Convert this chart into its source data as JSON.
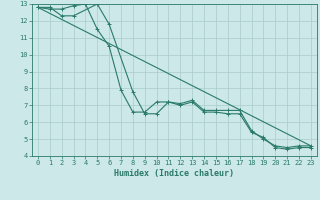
{
  "xlabel": "Humidex (Indice chaleur)",
  "bg_color": "#cce8e8",
  "grid_color": "#aacccc",
  "line_color": "#2a7a6a",
  "xlim": [
    -0.5,
    23.5
  ],
  "ylim": [
    4,
    13
  ],
  "xticks": [
    0,
    1,
    2,
    3,
    4,
    5,
    6,
    7,
    8,
    9,
    10,
    11,
    12,
    13,
    14,
    15,
    16,
    17,
    18,
    19,
    20,
    21,
    22,
    23
  ],
  "yticks": [
    4,
    5,
    6,
    7,
    8,
    9,
    10,
    11,
    12,
    13
  ],
  "line1_x": [
    0,
    1,
    2,
    3,
    4,
    5,
    6,
    7,
    8,
    9,
    10,
    11,
    12,
    13,
    14,
    15,
    16,
    17,
    18,
    19,
    20,
    21,
    22,
    23
  ],
  "line1_y": [
    12.8,
    12.7,
    12.7,
    12.9,
    13.0,
    11.5,
    10.5,
    7.9,
    6.6,
    6.6,
    7.2,
    7.2,
    7.1,
    7.3,
    6.7,
    6.7,
    6.7,
    6.7,
    5.5,
    5.0,
    4.6,
    4.5,
    4.6,
    4.6
  ],
  "line2_x": [
    0,
    1,
    2,
    3,
    5,
    6,
    8,
    9,
    10,
    11,
    12,
    13,
    14,
    15,
    16,
    17,
    18,
    19,
    20,
    21,
    22,
    23
  ],
  "line2_y": [
    12.8,
    12.8,
    12.3,
    12.3,
    13.0,
    11.8,
    7.8,
    6.5,
    6.5,
    7.2,
    7.0,
    7.2,
    6.6,
    6.6,
    6.5,
    6.5,
    5.4,
    5.1,
    4.5,
    4.4,
    4.5,
    4.5
  ],
  "line3_x": [
    0,
    23
  ],
  "line3_y": [
    12.8,
    4.6
  ],
  "tick_fontsize": 5,
  "xlabel_fontsize": 6
}
